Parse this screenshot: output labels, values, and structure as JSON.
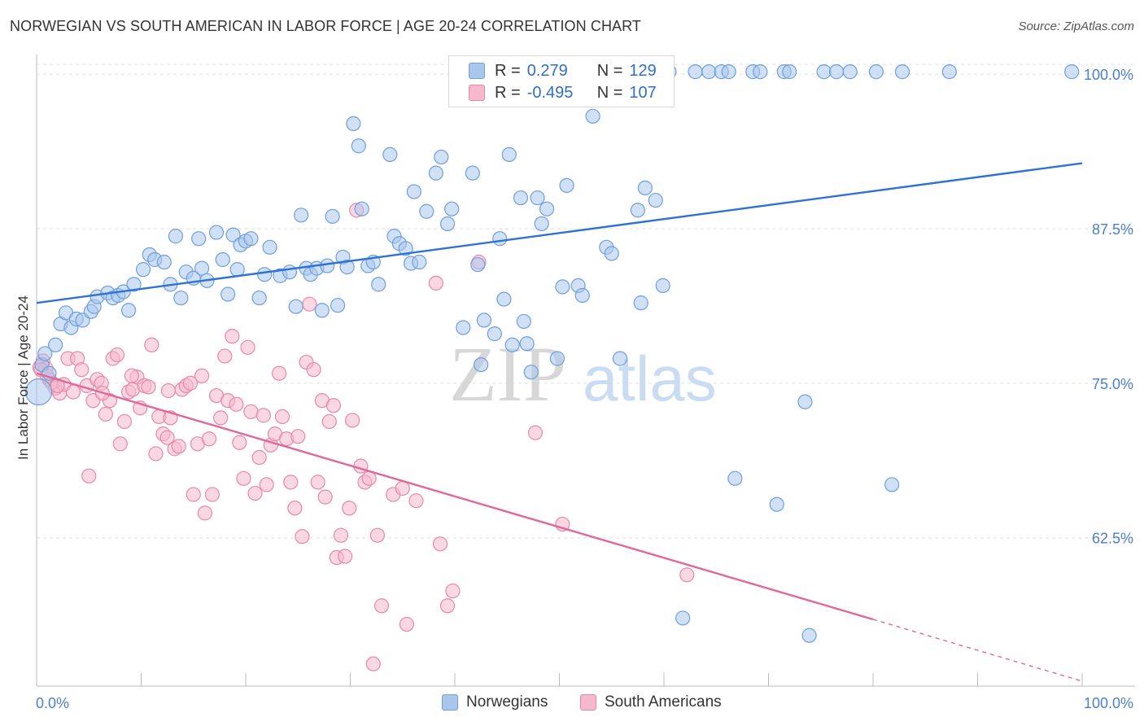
{
  "title": "NORWEGIAN VS SOUTH AMERICAN IN LABOR FORCE | AGE 20-24 CORRELATION CHART",
  "source": "Source: ZipAtlas.com",
  "watermark": {
    "zip": "ZIP",
    "atlas": "atlas"
  },
  "legend": {
    "rows": [
      {
        "r_label": "R =",
        "r_value": "0.279",
        "n_label": "N =",
        "n_value": "129"
      },
      {
        "r_label": "R =",
        "r_value": "-0.495",
        "n_label": "N =",
        "n_value": "107"
      }
    ]
  },
  "bottom_legend": [
    "Norwegians",
    "South Americans"
  ],
  "colors": {
    "blue_fill": "#a9c6ec",
    "blue_stroke": "#6f9fdc",
    "blue_line": "#2f72d3",
    "pink_fill": "#f6b8cc",
    "pink_stroke": "#e888a8",
    "pink_line": "#e0679a",
    "tick_label": "#4a7fcf",
    "grid": "#dddddd"
  },
  "chart_data": {
    "type": "scatter",
    "title": "NORWEGIAN VS SOUTH AMERICAN IN LABOR FORCE | AGE 20-24 CORRELATION CHART",
    "xlabel": "",
    "ylabel": "In Labor Force | Age 20-24",
    "xlim": [
      0,
      100
    ],
    "ylim": [
      50.5,
      100.8
    ],
    "x_tick_labels": [
      "0.0%",
      "100.0%"
    ],
    "y_ticks": [
      62.5,
      75.0,
      87.5,
      100.0
    ],
    "y_tick_labels": [
      "62.5%",
      "75.0%",
      "87.5%",
      "100.0%"
    ],
    "grid": "horizontal dashed",
    "legend_position": "top-center",
    "series": [
      {
        "name": "Norwegians",
        "trend": {
          "x": [
            0,
            100
          ],
          "y": [
            81.5,
            92.8
          ]
        },
        "points": [
          [
            0.2,
            74.3
          ],
          [
            0.5,
            76.5
          ],
          [
            0.8,
            77.4
          ],
          [
            1.2,
            75.8
          ],
          [
            1.8,
            78.1
          ],
          [
            2.3,
            79.8
          ],
          [
            2.8,
            80.7
          ],
          [
            3.3,
            79.5
          ],
          [
            3.8,
            80.2
          ],
          [
            4.4,
            80.1
          ],
          [
            5.2,
            80.8
          ],
          [
            5.5,
            81.2
          ],
          [
            5.8,
            82.0
          ],
          [
            6.8,
            82.3
          ],
          [
            7.3,
            81.9
          ],
          [
            7.8,
            82.1
          ],
          [
            8.3,
            82.4
          ],
          [
            8.8,
            80.9
          ],
          [
            9.3,
            83.0
          ],
          [
            10.2,
            84.2
          ],
          [
            10.8,
            85.4
          ],
          [
            11.3,
            85.0
          ],
          [
            12.2,
            84.8
          ],
          [
            12.8,
            83.0
          ],
          [
            13.3,
            86.9
          ],
          [
            13.8,
            81.9
          ],
          [
            14.3,
            84.0
          ],
          [
            15.0,
            83.5
          ],
          [
            15.5,
            86.7
          ],
          [
            15.8,
            84.3
          ],
          [
            16.3,
            83.3
          ],
          [
            17.2,
            87.2
          ],
          [
            17.8,
            85.0
          ],
          [
            18.3,
            82.2
          ],
          [
            18.8,
            87.0
          ],
          [
            19.2,
            84.2
          ],
          [
            19.5,
            86.2
          ],
          [
            20.0,
            86.5
          ],
          [
            20.5,
            86.7
          ],
          [
            21.3,
            81.9
          ],
          [
            21.8,
            83.8
          ],
          [
            22.3,
            86.0
          ],
          [
            23.3,
            83.7
          ],
          [
            24.2,
            84.0
          ],
          [
            24.8,
            81.2
          ],
          [
            25.3,
            88.6
          ],
          [
            25.8,
            84.3
          ],
          [
            26.2,
            83.8
          ],
          [
            26.8,
            84.3
          ],
          [
            27.3,
            80.9
          ],
          [
            27.8,
            84.5
          ],
          [
            28.3,
            88.5
          ],
          [
            28.8,
            81.3
          ],
          [
            29.3,
            85.2
          ],
          [
            29.7,
            84.4
          ],
          [
            30.3,
            96.0
          ],
          [
            30.8,
            94.2
          ],
          [
            31.1,
            89.1
          ],
          [
            31.7,
            84.5
          ],
          [
            32.2,
            84.8
          ],
          [
            32.7,
            83.0
          ],
          [
            33.8,
            93.5
          ],
          [
            34.2,
            86.9
          ],
          [
            34.7,
            86.3
          ],
          [
            35.3,
            85.9
          ],
          [
            35.8,
            84.7
          ],
          [
            36.1,
            90.5
          ],
          [
            36.6,
            84.8
          ],
          [
            37.3,
            88.9
          ],
          [
            38.2,
            92.0
          ],
          [
            38.7,
            93.3
          ],
          [
            39.3,
            87.9
          ],
          [
            39.7,
            89.1
          ],
          [
            40.5,
            100.2
          ],
          [
            40.8,
            79.5
          ],
          [
            41.7,
            92.0
          ],
          [
            42.2,
            84.6
          ],
          [
            42.5,
            76.5
          ],
          [
            42.8,
            80.1
          ],
          [
            43.8,
            79.0
          ],
          [
            44.3,
            86.7
          ],
          [
            44.7,
            81.8
          ],
          [
            45.2,
            93.5
          ],
          [
            46.3,
            90.0
          ],
          [
            45.5,
            78.1
          ],
          [
            46.6,
            80.0
          ],
          [
            46.9,
            78.2
          ],
          [
            47.3,
            75.9
          ],
          [
            47.9,
            90.0
          ],
          [
            48.3,
            87.9
          ],
          [
            48.8,
            89.1
          ],
          [
            49.8,
            77.0
          ],
          [
            50.3,
            82.8
          ],
          [
            50.7,
            91.0
          ],
          [
            51.8,
            82.9
          ],
          [
            52.2,
            82.1
          ],
          [
            53.2,
            99.7
          ],
          [
            53.2,
            96.6
          ],
          [
            54.5,
            86.0
          ],
          [
            55.0,
            85.5
          ],
          [
            55.8,
            77.0
          ],
          [
            57.5,
            89.0
          ],
          [
            57.8,
            81.5
          ],
          [
            58.2,
            90.8
          ],
          [
            59.2,
            89.8
          ],
          [
            59.9,
            82.9
          ],
          [
            61.8,
            56.0
          ],
          [
            63.0,
            100.2
          ],
          [
            64.3,
            100.2
          ],
          [
            65.5,
            100.2
          ],
          [
            66.2,
            100.2
          ],
          [
            66.8,
            67.3
          ],
          [
            68.5,
            100.2
          ],
          [
            70.8,
            65.2
          ],
          [
            71.5,
            100.2
          ],
          [
            72.0,
            100.2
          ],
          [
            73.5,
            73.5
          ],
          [
            73.9,
            54.6
          ],
          [
            75.3,
            100.2
          ],
          [
            80.3,
            100.2
          ],
          [
            81.8,
            66.8
          ],
          [
            82.8,
            100.2
          ],
          [
            87.3,
            100.2
          ],
          [
            99.0,
            100.2
          ],
          [
            59.5,
            100.2
          ],
          [
            60.5,
            100.2
          ],
          [
            69.2,
            100.2
          ],
          [
            76.5,
            100.2
          ],
          [
            77.8,
            100.2
          ]
        ]
      },
      {
        "name": "South Americans",
        "trend": {
          "x": [
            0,
            80
          ],
          "y": [
            75.8,
            55.9
          ],
          "dashed_to": {
            "x": 100,
            "y": 50.9
          }
        },
        "points": [
          [
            0.3,
            76.3
          ],
          [
            0.6,
            76.8
          ],
          [
            0.9,
            76.2
          ],
          [
            1.2,
            75.3
          ],
          [
            1.5,
            75.0
          ],
          [
            1.8,
            74.6
          ],
          [
            2.2,
            74.2
          ],
          [
            2.6,
            74.9
          ],
          [
            3.0,
            77.0
          ],
          [
            3.5,
            74.3
          ],
          [
            3.9,
            77.0
          ],
          [
            4.3,
            76.1
          ],
          [
            4.8,
            74.8
          ],
          [
            5.0,
            67.5
          ],
          [
            5.4,
            73.6
          ],
          [
            5.8,
            75.3
          ],
          [
            6.2,
            75.0
          ],
          [
            6.6,
            72.5
          ],
          [
            7.0,
            73.6
          ],
          [
            7.3,
            77.0
          ],
          [
            7.7,
            77.3
          ],
          [
            8.0,
            70.1
          ],
          [
            8.4,
            71.9
          ],
          [
            8.8,
            74.3
          ],
          [
            9.2,
            74.5
          ],
          [
            9.6,
            75.5
          ],
          [
            9.9,
            73.0
          ],
          [
            10.3,
            74.8
          ],
          [
            10.7,
            74.7
          ],
          [
            11.0,
            78.1
          ],
          [
            11.4,
            69.3
          ],
          [
            11.7,
            72.3
          ],
          [
            12.1,
            70.9
          ],
          [
            12.5,
            70.6
          ],
          [
            12.8,
            72.2
          ],
          [
            13.2,
            69.7
          ],
          [
            13.6,
            69.9
          ],
          [
            13.9,
            74.5
          ],
          [
            14.3,
            74.8
          ],
          [
            14.7,
            75.0
          ],
          [
            15.0,
            66.0
          ],
          [
            15.4,
            70.1
          ],
          [
            15.8,
            75.6
          ],
          [
            16.1,
            64.5
          ],
          [
            16.5,
            70.5
          ],
          [
            16.8,
            66.0
          ],
          [
            17.2,
            74.0
          ],
          [
            17.6,
            72.2
          ],
          [
            18.0,
            77.2
          ],
          [
            18.3,
            73.6
          ],
          [
            18.7,
            78.8
          ],
          [
            19.1,
            73.3
          ],
          [
            19.4,
            70.2
          ],
          [
            19.8,
            67.3
          ],
          [
            20.2,
            77.9
          ],
          [
            20.5,
            72.7
          ],
          [
            20.9,
            66.1
          ],
          [
            21.3,
            69.0
          ],
          [
            21.7,
            72.4
          ],
          [
            22.0,
            66.8
          ],
          [
            22.4,
            70.0
          ],
          [
            22.8,
            70.9
          ],
          [
            23.2,
            75.8
          ],
          [
            23.5,
            72.3
          ],
          [
            23.9,
            70.5
          ],
          [
            24.3,
            67.0
          ],
          [
            24.7,
            64.9
          ],
          [
            25.0,
            70.7
          ],
          [
            25.4,
            62.6
          ],
          [
            25.8,
            76.7
          ],
          [
            26.1,
            81.4
          ],
          [
            26.5,
            76.1
          ],
          [
            26.9,
            67.0
          ],
          [
            27.3,
            73.6
          ],
          [
            27.6,
            65.8
          ],
          [
            28.0,
            71.9
          ],
          [
            28.4,
            73.2
          ],
          [
            28.7,
            60.9
          ],
          [
            29.1,
            62.7
          ],
          [
            29.5,
            61.0
          ],
          [
            29.9,
            64.9
          ],
          [
            30.2,
            72.0
          ],
          [
            30.6,
            89.0
          ],
          [
            31.0,
            68.3
          ],
          [
            31.4,
            67.0
          ],
          [
            31.8,
            67.3
          ],
          [
            32.2,
            52.3
          ],
          [
            32.6,
            62.7
          ],
          [
            33.0,
            57.0
          ],
          [
            34.1,
            66.0
          ],
          [
            35.0,
            66.5
          ],
          [
            35.4,
            55.5
          ],
          [
            36.3,
            65.5
          ],
          [
            38.2,
            83.1
          ],
          [
            38.6,
            62.0
          ],
          [
            39.3,
            57.0
          ],
          [
            39.8,
            58.2
          ],
          [
            42.3,
            84.8
          ],
          [
            47.7,
            71.0
          ],
          [
            50.3,
            63.6
          ],
          [
            62.2,
            59.5
          ],
          [
            0.4,
            76.1
          ],
          [
            1.0,
            75.6
          ],
          [
            2.0,
            74.8
          ],
          [
            6.3,
            74.2
          ],
          [
            9.1,
            75.6
          ],
          [
            12.6,
            74.4
          ]
        ]
      }
    ]
  }
}
